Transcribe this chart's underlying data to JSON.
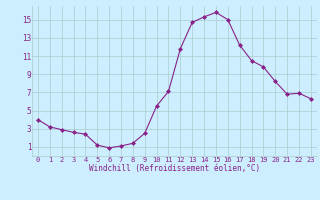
{
  "x": [
    0,
    1,
    2,
    3,
    4,
    5,
    6,
    7,
    8,
    9,
    10,
    11,
    12,
    13,
    14,
    15,
    16,
    17,
    18,
    19,
    20,
    21,
    22,
    23
  ],
  "y": [
    4.0,
    3.2,
    2.9,
    2.6,
    2.4,
    1.2,
    0.9,
    1.1,
    1.4,
    2.5,
    5.5,
    7.1,
    11.8,
    14.7,
    15.3,
    15.8,
    15.0,
    12.2,
    10.5,
    9.8,
    8.2,
    6.8,
    6.9,
    6.3
  ],
  "line_color": "#882288",
  "marker": "D",
  "marker_size": 2,
  "bg_color": "#cceeff",
  "grid_color": "#aacccc",
  "xlabel": "Windchill (Refroidissement éolien,°C)",
  "xlabel_color": "#882288",
  "tick_color": "#882288",
  "xlim": [
    -0.5,
    23.5
  ],
  "ylim": [
    0,
    16.5
  ],
  "yticks": [
    1,
    3,
    5,
    7,
    9,
    11,
    13,
    15
  ],
  "xticks": [
    0,
    1,
    2,
    3,
    4,
    5,
    6,
    7,
    8,
    9,
    10,
    11,
    12,
    13,
    14,
    15,
    16,
    17,
    18,
    19,
    20,
    21,
    22,
    23
  ],
  "font_family": "monospace",
  "xlabel_fontsize": 5.5,
  "xtick_fontsize": 5.0,
  "ytick_fontsize": 5.5
}
